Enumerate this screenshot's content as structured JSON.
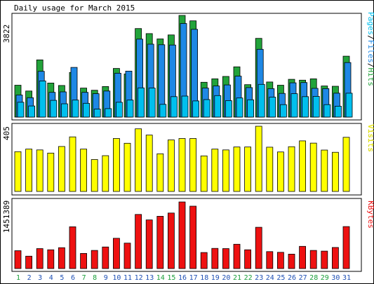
{
  "title": "Daily usage for March 2015",
  "colors": {
    "hits": "#22A33A",
    "files": "#1E88E5",
    "pages": "#00BFEE",
    "visits": "#FFFF00",
    "kbytes": "#EE1111",
    "weekend_day": "#1A9E3A",
    "weekday_day": "#1E4FB4"
  },
  "legend_hits_panel": {
    "pages": "Pages",
    "files": "Files",
    "hits": "Hits",
    "sep": "/"
  },
  "legend_visits": "Visits",
  "legend_kbytes": "KBytes",
  "max_labels": {
    "hits": "3822",
    "visits": "405",
    "kbytes": "1451389"
  },
  "chart_data": [
    {
      "type": "bar",
      "title": "Daily usage for March 2015",
      "ymax": 3822,
      "categories": [
        "1",
        "2",
        "3",
        "4",
        "5",
        "6",
        "7",
        "8",
        "9",
        "10",
        "11",
        "12",
        "13",
        "14",
        "15",
        "16",
        "17",
        "18",
        "19",
        "20",
        "21",
        "22",
        "23",
        "24",
        "25",
        "26",
        "27",
        "28",
        "29",
        "30",
        "31"
      ],
      "weekend": [
        true,
        false,
        false,
        false,
        false,
        false,
        true,
        true,
        false,
        false,
        false,
        false,
        false,
        true,
        true,
        false,
        false,
        false,
        false,
        false,
        true,
        true,
        false,
        false,
        false,
        false,
        false,
        true,
        true,
        false,
        false
      ],
      "series": [
        {
          "name": "Hits",
          "values": [
            1200,
            980,
            2150,
            1280,
            1190,
            1680,
            1090,
            1010,
            1150,
            1830,
            1620,
            3330,
            3140,
            2940,
            3090,
            3822,
            3620,
            1310,
            1440,
            1530,
            1890,
            1220,
            2960,
            1320,
            1200,
            1420,
            1390,
            1440,
            1170,
            1160,
            2290
          ]
        },
        {
          "name": "Files",
          "values": [
            830,
            730,
            1720,
            930,
            950,
            1870,
            930,
            880,
            980,
            1650,
            1730,
            2930,
            2740,
            2720,
            2710,
            3520,
            3300,
            1090,
            1170,
            1210,
            1540,
            1110,
            2550,
            1070,
            890,
            1290,
            1300,
            1080,
            1070,
            900,
            2050
          ]
        },
        {
          "name": "Pages",
          "values": [
            560,
            420,
            1360,
            630,
            500,
            640,
            520,
            300,
            320,
            560,
            640,
            1100,
            1090,
            480,
            770,
            790,
            610,
            660,
            810,
            620,
            720,
            650,
            1230,
            750,
            470,
            880,
            770,
            780,
            470,
            410,
            900
          ]
        }
      ]
    },
    {
      "type": "bar",
      "ymax": 405,
      "categories": [
        "1",
        "2",
        "3",
        "4",
        "5",
        "6",
        "7",
        "8",
        "9",
        "10",
        "11",
        "12",
        "13",
        "14",
        "15",
        "16",
        "17",
        "18",
        "19",
        "20",
        "21",
        "22",
        "23",
        "24",
        "25",
        "26",
        "27",
        "28",
        "29",
        "30",
        "31"
      ],
      "series": [
        {
          "name": "Visits",
          "values": [
            247,
            263,
            258,
            238,
            279,
            339,
            263,
            198,
            222,
            329,
            299,
            389,
            350,
            234,
            320,
            329,
            329,
            221,
            263,
            258,
            276,
            276,
            405,
            275,
            245,
            278,
            314,
            300,
            257,
            243,
            336
          ]
        }
      ]
    },
    {
      "type": "bar",
      "ymax": 1451389,
      "categories": [
        "1",
        "2",
        "3",
        "4",
        "5",
        "6",
        "7",
        "8",
        "9",
        "10",
        "11",
        "12",
        "13",
        "14",
        "15",
        "16",
        "17",
        "18",
        "19",
        "20",
        "21",
        "22",
        "23",
        "24",
        "25",
        "26",
        "27",
        "28",
        "29",
        "30",
        "31"
      ],
      "series": [
        {
          "name": "KBytes",
          "values": [
            390000,
            270000,
            435000,
            410000,
            455000,
            910000,
            330000,
            395000,
            470000,
            660000,
            555000,
            1180000,
            1060000,
            1140000,
            1210000,
            1451389,
            1360000,
            350000,
            440000,
            435000,
            530000,
            410000,
            900000,
            370000,
            355000,
            315000,
            485000,
            395000,
            380000,
            460000,
            915000
          ]
        }
      ]
    }
  ]
}
